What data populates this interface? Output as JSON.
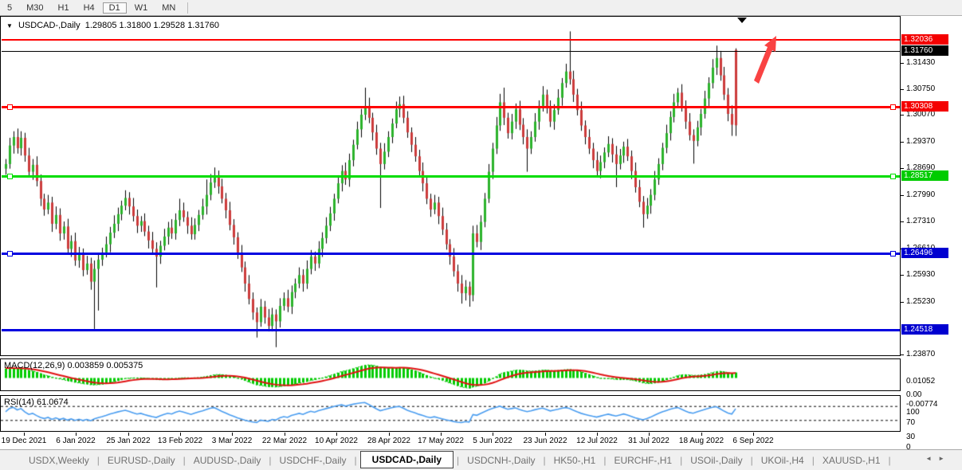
{
  "toolbar": {
    "timeframes": [
      "5",
      "M30",
      "H1",
      "H4",
      "D1",
      "W1",
      "MN"
    ],
    "active": "D1"
  },
  "chart": {
    "dropdown_icon": "▼",
    "title": "USDCAD-,Daily",
    "ohlc": "1.29805 1.31800 1.29528 1.31760",
    "current_price": 1.3176
  },
  "price_axis": {
    "ticks": [
      "1.31430",
      "1.30750",
      "1.30070",
      "1.29370",
      "1.28690",
      "1.27990",
      "1.27310",
      "1.26610",
      "1.25930",
      "1.25230",
      "1.23870"
    ],
    "badges": [
      {
        "value": "1.32036",
        "color": "#f40000"
      },
      {
        "value": "1.31760",
        "color": "#000000"
      },
      {
        "value": "1.30308",
        "color": "#f40000"
      },
      {
        "value": "1.28517",
        "color": "#00cc00"
      },
      {
        "value": "1.26496",
        "color": "#0000d0"
      },
      {
        "value": "1.24518",
        "color": "#0000d0"
      }
    ]
  },
  "horizontal_lines": [
    {
      "price": 1.32036,
      "color": "#ff0000",
      "thickness": 2,
      "handles": false
    },
    {
      "price": 1.3176,
      "color": "#000000",
      "thickness": 1,
      "handles": false
    },
    {
      "price": 1.30308,
      "color": "#ff0000",
      "thickness": 3,
      "handles": true
    },
    {
      "price": 1.28517,
      "color": "#00dd00",
      "thickness": 3,
      "handles": true
    },
    {
      "price": 1.26496,
      "color": "#0000e0",
      "thickness": 3,
      "handles": true
    },
    {
      "price": 1.24518,
      "color": "#0000e0",
      "thickness": 3,
      "handles": false
    }
  ],
  "annotations": {
    "arrow_color": "#f94343",
    "shift_marker_icon": "black-down-triangle"
  },
  "date_axis": [
    "19 Dec 2021",
    "6 Jan 2022",
    "25 Jan 2022",
    "13 Feb 2022",
    "3 Mar 2022",
    "22 Mar 2022",
    "10 Apr 2022",
    "28 Apr 2022",
    "17 May 2022",
    "5 Jun 2022",
    "23 Jun 2022",
    "12 Jul 2022",
    "31 Jul 2022",
    "18 Aug 2022",
    "6 Sep 2022"
  ],
  "indicators": {
    "macd": {
      "name": "MACD(12,26,9)",
      "values": "0.003859 0.005375",
      "axis_labels": [
        "0.01052",
        "0.00",
        "-0.00774"
      ],
      "axis_values": [
        0.01052,
        0.0,
        -0.00774
      ],
      "histogram_color": "#00cc00",
      "signal_color": "#e01212"
    },
    "rsi": {
      "name": "RSI(14)",
      "value": "61.0674",
      "axis_labels": [
        "100",
        "70",
        "30",
        "0"
      ],
      "axis_values": [
        100,
        70,
        30,
        0
      ],
      "levels": [
        70,
        30
      ],
      "line_color": "#4a9df0"
    }
  },
  "tabs": {
    "items": [
      "USDX,Weekly",
      "EURUSD-,Daily",
      "AUDUSD-,Daily",
      "USDCHF-,Daily",
      "USDCAD-,Daily",
      "USDCNH-,Daily",
      "HK50-,H1",
      "EURCHF-,H1",
      "USOil-,Daily",
      "UKOil-,H4",
      "XAUUSD-,H1"
    ],
    "active": "USDCAD-,Daily",
    "scroll_left_icon": "◄",
    "scroll_right_icon": "►"
  },
  "chart_data": {
    "type": "candlestick",
    "symbol": "USDCAD",
    "timeframe": "Daily",
    "x_start": "19 Dec 2021",
    "x_end": "9 Sep 2022",
    "y_range": [
      1.2384,
      1.3262
    ],
    "up_color": "#2bb32b",
    "down_color": "#cc3b3b",
    "candles": [
      [
        1.2868,
        1.2893,
        1.2852,
        1.288
      ],
      [
        1.288,
        1.2948,
        1.2868,
        1.2928
      ],
      [
        1.2928,
        1.2965,
        1.2907,
        1.295
      ],
      [
        1.295,
        1.2972,
        1.2907,
        1.2921
      ],
      [
        1.2921,
        1.2965,
        1.2902,
        1.2948
      ],
      [
        1.2948,
        1.2961,
        1.2886,
        1.2902
      ],
      [
        1.2902,
        1.2922,
        1.2848,
        1.286
      ],
      [
        1.286,
        1.2893,
        1.2839,
        1.2878
      ],
      [
        1.2878,
        1.29,
        1.2822,
        1.2836
      ],
      [
        1.2836,
        1.2853,
        1.2771,
        1.279
      ],
      [
        1.279,
        1.2803,
        1.2746,
        1.2762
      ],
      [
        1.2762,
        1.28,
        1.275,
        1.278
      ],
      [
        1.278,
        1.2795,
        1.2704,
        1.2725
      ],
      [
        1.2725,
        1.277,
        1.2711,
        1.2748
      ],
      [
        1.2748,
        1.2765,
        1.2681,
        1.27
      ],
      [
        1.27,
        1.2731,
        1.2684,
        1.2718
      ],
      [
        1.2718,
        1.2738,
        1.2648,
        1.266
      ],
      [
        1.266,
        1.2695,
        1.2639,
        1.268
      ],
      [
        1.268,
        1.2702,
        1.2616,
        1.263
      ],
      [
        1.263,
        1.2665,
        1.2611,
        1.2648
      ],
      [
        1.2648,
        1.2661,
        1.2589,
        1.2605
      ],
      [
        1.2605,
        1.2642,
        1.2593,
        1.2622
      ],
      [
        1.2622,
        1.2637,
        1.2554,
        1.2575
      ],
      [
        1.2575,
        1.263,
        1.2452,
        1.2608
      ],
      [
        1.2608,
        1.2649,
        1.25,
        1.2632
      ],
      [
        1.2632,
        1.2663,
        1.2616,
        1.265
      ],
      [
        1.265,
        1.2692,
        1.2638,
        1.2672
      ],
      [
        1.2672,
        1.2717,
        1.2651,
        1.2702
      ],
      [
        1.2702,
        1.2747,
        1.2688,
        1.2725
      ],
      [
        1.2725,
        1.2767,
        1.2706,
        1.275
      ],
      [
        1.275,
        1.2785,
        1.2734,
        1.2772
      ],
      [
        1.2772,
        1.2812,
        1.276,
        1.2792
      ],
      [
        1.2792,
        1.2807,
        1.2749,
        1.277
      ],
      [
        1.277,
        1.2792,
        1.2731,
        1.2745
      ],
      [
        1.2745,
        1.2762,
        1.2701,
        1.272
      ],
      [
        1.272,
        1.2745,
        1.2704,
        1.2732
      ],
      [
        1.2732,
        1.2752,
        1.2693,
        1.2705
      ],
      [
        1.2705,
        1.272,
        1.2661,
        1.2682
      ],
      [
        1.2682,
        1.2704,
        1.2646,
        1.266
      ],
      [
        1.266,
        1.2677,
        1.256,
        1.264
      ],
      [
        1.264,
        1.2681,
        1.2621,
        1.2668
      ],
      [
        1.2668,
        1.2712,
        1.2656,
        1.2692
      ],
      [
        1.2692,
        1.273,
        1.2671,
        1.2715
      ],
      [
        1.2715,
        1.2737,
        1.2686,
        1.27
      ],
      [
        1.27,
        1.2752,
        1.2684,
        1.2735
      ],
      [
        1.2735,
        1.279,
        1.2719,
        1.276
      ],
      [
        1.276,
        1.278,
        1.273,
        1.2742
      ],
      [
        1.2742,
        1.2757,
        1.2699,
        1.272
      ],
      [
        1.272,
        1.2742,
        1.2684,
        1.2698
      ],
      [
        1.2698,
        1.2739,
        1.2684,
        1.2722
      ],
      [
        1.2722,
        1.2761,
        1.2706,
        1.2748
      ],
      [
        1.2748,
        1.279,
        1.2736,
        1.277
      ],
      [
        1.277,
        1.284,
        1.2749,
        1.28
      ],
      [
        1.28,
        1.2854,
        1.2786,
        1.2832
      ],
      [
        1.2832,
        1.2871,
        1.2818,
        1.285
      ],
      [
        1.285,
        1.2863,
        1.2803,
        1.2822
      ],
      [
        1.2822,
        1.2842,
        1.2778,
        1.279
      ],
      [
        1.279,
        1.2805,
        1.2739,
        1.276
      ],
      [
        1.276,
        1.2782,
        1.2708,
        1.2722
      ],
      [
        1.2722,
        1.2737,
        1.2671,
        1.269
      ],
      [
        1.269,
        1.2703,
        1.2634,
        1.265
      ],
      [
        1.265,
        1.267,
        1.26,
        1.2612
      ],
      [
        1.2612,
        1.2627,
        1.2549,
        1.257
      ],
      [
        1.257,
        1.2592,
        1.2516,
        1.253
      ],
      [
        1.253,
        1.2547,
        1.2476,
        1.2495
      ],
      [
        1.2495,
        1.2508,
        1.243,
        1.247
      ],
      [
        1.247,
        1.253,
        1.2458,
        1.251
      ],
      [
        1.251,
        1.2525,
        1.2466,
        1.2482
      ],
      [
        1.2482,
        1.2504,
        1.2446,
        1.246
      ],
      [
        1.246,
        1.2507,
        1.2446,
        1.249
      ],
      [
        1.249,
        1.2503,
        1.2405,
        1.2472
      ],
      [
        1.2472,
        1.2532,
        1.2456,
        1.2512
      ],
      [
        1.2512,
        1.2547,
        1.25,
        1.2532
      ],
      [
        1.2532,
        1.2554,
        1.2496,
        1.251
      ],
      [
        1.251,
        1.2565,
        1.2491,
        1.2548
      ],
      [
        1.2548,
        1.2583,
        1.2532,
        1.257
      ],
      [
        1.257,
        1.2612,
        1.2558,
        1.2592
      ],
      [
        1.2592,
        1.2607,
        1.2549,
        1.257
      ],
      [
        1.257,
        1.263,
        1.2556,
        1.2608
      ],
      [
        1.2608,
        1.2657,
        1.2594,
        1.264
      ],
      [
        1.264,
        1.2653,
        1.2603,
        1.2622
      ],
      [
        1.2622,
        1.268,
        1.261,
        1.266
      ],
      [
        1.266,
        1.2703,
        1.2639,
        1.2688
      ],
      [
        1.2688,
        1.2742,
        1.2674,
        1.272
      ],
      [
        1.272,
        1.2769,
        1.2706,
        1.2752
      ],
      [
        1.2752,
        1.2803,
        1.2733,
        1.279
      ],
      [
        1.279,
        1.285,
        1.2778,
        1.283
      ],
      [
        1.283,
        1.2877,
        1.2809,
        1.2862
      ],
      [
        1.2862,
        1.2884,
        1.2826,
        1.284
      ],
      [
        1.284,
        1.2907,
        1.2821,
        1.289
      ],
      [
        1.289,
        1.2943,
        1.2874,
        1.293
      ],
      [
        1.293,
        1.299,
        1.2918,
        1.297
      ],
      [
        1.297,
        1.3023,
        1.2949,
        1.3008
      ],
      [
        1.3008,
        1.3078,
        1.2994,
        1.303
      ],
      [
        1.303,
        1.3052,
        1.2986,
        1.3
      ],
      [
        1.3,
        1.3013,
        1.2941,
        1.2962
      ],
      [
        1.2962,
        1.2982,
        1.2904,
        1.292
      ],
      [
        1.292,
        1.2935,
        1.2766,
        1.288
      ],
      [
        1.288,
        1.2934,
        1.2866,
        1.2912
      ],
      [
        1.2912,
        1.2965,
        1.2898,
        1.295
      ],
      [
        1.295,
        1.2998,
        1.2934,
        1.2985
      ],
      [
        1.2985,
        1.3042,
        1.2973,
        1.3022
      ],
      [
        1.3022,
        1.3055,
        1.3001,
        1.3035
      ],
      [
        1.3035,
        1.3057,
        1.2986,
        1.3
      ],
      [
        1.3,
        1.3017,
        1.2948,
        1.2962
      ],
      [
        1.2962,
        1.2975,
        1.2911,
        1.293
      ],
      [
        1.293,
        1.295,
        1.2886,
        1.29
      ],
      [
        1.29,
        1.2917,
        1.2848,
        1.2862
      ],
      [
        1.2862,
        1.2884,
        1.2809,
        1.283
      ],
      [
        1.283,
        1.2847,
        1.2776,
        1.279
      ],
      [
        1.279,
        1.2803,
        1.2743,
        1.2762
      ],
      [
        1.2762,
        1.28,
        1.275,
        1.278
      ],
      [
        1.278,
        1.2795,
        1.2724,
        1.2745
      ],
      [
        1.2745,
        1.2767,
        1.2696,
        1.271
      ],
      [
        1.271,
        1.2727,
        1.2658,
        1.2672
      ],
      [
        1.2672,
        1.2685,
        1.2619,
        1.264
      ],
      [
        1.264,
        1.2662,
        1.2588,
        1.2602
      ],
      [
        1.2602,
        1.2619,
        1.2549,
        1.257
      ],
      [
        1.257,
        1.2592,
        1.2518,
        1.2545
      ],
      [
        1.2545,
        1.2579,
        1.2526,
        1.2562
      ],
      [
        1.2562,
        1.2575,
        1.251,
        1.254
      ],
      [
        1.254,
        1.272,
        1.2524,
        1.27
      ],
      [
        1.27,
        1.2722,
        1.2664,
        1.2678
      ],
      [
        1.2678,
        1.2747,
        1.2657,
        1.273
      ],
      [
        1.273,
        1.2805,
        1.2716,
        1.279
      ],
      [
        1.279,
        1.288,
        1.2779,
        1.286
      ],
      [
        1.286,
        1.2935,
        1.2841,
        1.292
      ],
      [
        1.292,
        1.3002,
        1.2906,
        1.298
      ],
      [
        1.298,
        1.3062,
        1.2966,
        1.304
      ],
      [
        1.304,
        1.3078,
        1.2981,
        1.3
      ],
      [
        1.3,
        1.3013,
        1.2946,
        1.296
      ],
      [
        1.296,
        1.301,
        1.2944,
        1.299
      ],
      [
        1.299,
        1.3037,
        1.2971,
        1.3022
      ],
      [
        1.3022,
        1.3044,
        1.2968,
        1.2982
      ],
      [
        1.2982,
        1.2999,
        1.2931,
        1.295
      ],
      [
        1.295,
        1.297,
        1.286,
        1.292
      ],
      [
        1.292,
        1.2965,
        1.2906,
        1.295
      ],
      [
        1.295,
        1.3012,
        1.2938,
        1.299
      ],
      [
        1.299,
        1.3045,
        1.2969,
        1.303
      ],
      [
        1.303,
        1.3082,
        1.3016,
        1.306
      ],
      [
        1.306,
        1.3073,
        1.3011,
        1.3025
      ],
      [
        1.3025,
        1.3045,
        1.2976,
        1.299
      ],
      [
        1.299,
        1.3035,
        1.2969,
        1.302
      ],
      [
        1.302,
        1.3074,
        1.3008,
        1.3052
      ],
      [
        1.3052,
        1.3103,
        1.3031,
        1.309
      ],
      [
        1.309,
        1.314,
        1.3078,
        1.312
      ],
      [
        1.312,
        1.3224,
        1.3086,
        1.31
      ],
      [
        1.31,
        1.3122,
        1.3041,
        1.306
      ],
      [
        1.306,
        1.3075,
        1.3006,
        1.302
      ],
      [
        1.302,
        1.3042,
        1.2966,
        1.298
      ],
      [
        1.298,
        1.2993,
        1.2931,
        1.295
      ],
      [
        1.295,
        1.297,
        1.2906,
        1.292
      ],
      [
        1.292,
        1.2935,
        1.2869,
        1.289
      ],
      [
        1.289,
        1.2912,
        1.2848,
        1.2862
      ],
      [
        1.2862,
        1.2902,
        1.2843,
        1.2885
      ],
      [
        1.2885,
        1.2923,
        1.2869,
        1.291
      ],
      [
        1.291,
        1.2952,
        1.2898,
        1.2932
      ],
      [
        1.2932,
        1.2947,
        1.2884,
        1.2905
      ],
      [
        1.2905,
        1.2927,
        1.282,
        1.288
      ],
      [
        1.288,
        1.2919,
        1.2866,
        1.2902
      ],
      [
        1.2902,
        1.2938,
        1.2883,
        1.2925
      ],
      [
        1.2925,
        1.2945,
        1.2888,
        1.29
      ],
      [
        1.29,
        1.2915,
        1.2841,
        1.2862
      ],
      [
        1.2862,
        1.2884,
        1.2806,
        1.282
      ],
      [
        1.282,
        1.2839,
        1.2768,
        1.2782
      ],
      [
        1.2782,
        1.2797,
        1.2715,
        1.275
      ],
      [
        1.275,
        1.2792,
        1.2738,
        1.2772
      ],
      [
        1.2772,
        1.2815,
        1.2751,
        1.28
      ],
      [
        1.28,
        1.2862,
        1.2786,
        1.284
      ],
      [
        1.284,
        1.2895,
        1.2826,
        1.288
      ],
      [
        1.288,
        1.2935,
        1.2864,
        1.2922
      ],
      [
        1.2922,
        1.2982,
        1.2908,
        1.296
      ],
      [
        1.296,
        1.3017,
        1.2941,
        1.3002
      ],
      [
        1.3002,
        1.3062,
        1.2988,
        1.304
      ],
      [
        1.304,
        1.3077,
        1.3026,
        1.3065
      ],
      [
        1.3065,
        1.3087,
        1.3016,
        1.303
      ],
      [
        1.303,
        1.3045,
        1.2971,
        1.299
      ],
      [
        1.299,
        1.3012,
        1.2941,
        1.2955
      ],
      [
        1.2955,
        1.297,
        1.2881,
        1.294
      ],
      [
        1.294,
        1.2992,
        1.2926,
        1.2975
      ],
      [
        1.2975,
        1.3023,
        1.2954,
        1.301
      ],
      [
        1.301,
        1.307,
        1.2998,
        1.305
      ],
      [
        1.305,
        1.3105,
        1.3029,
        1.309
      ],
      [
        1.309,
        1.3152,
        1.3076,
        1.313
      ],
      [
        1.313,
        1.3187,
        1.3111,
        1.3155
      ],
      [
        1.3155,
        1.3173,
        1.3096,
        1.311
      ],
      [
        1.311,
        1.3132,
        1.3046,
        1.306
      ],
      [
        1.306,
        1.3077,
        1.2991,
        1.301
      ],
      [
        1.301,
        1.3032,
        1.2953,
        1.2982
      ],
      [
        1.29805,
        1.318,
        1.29528,
        1.3176,
        1
      ]
    ]
  }
}
